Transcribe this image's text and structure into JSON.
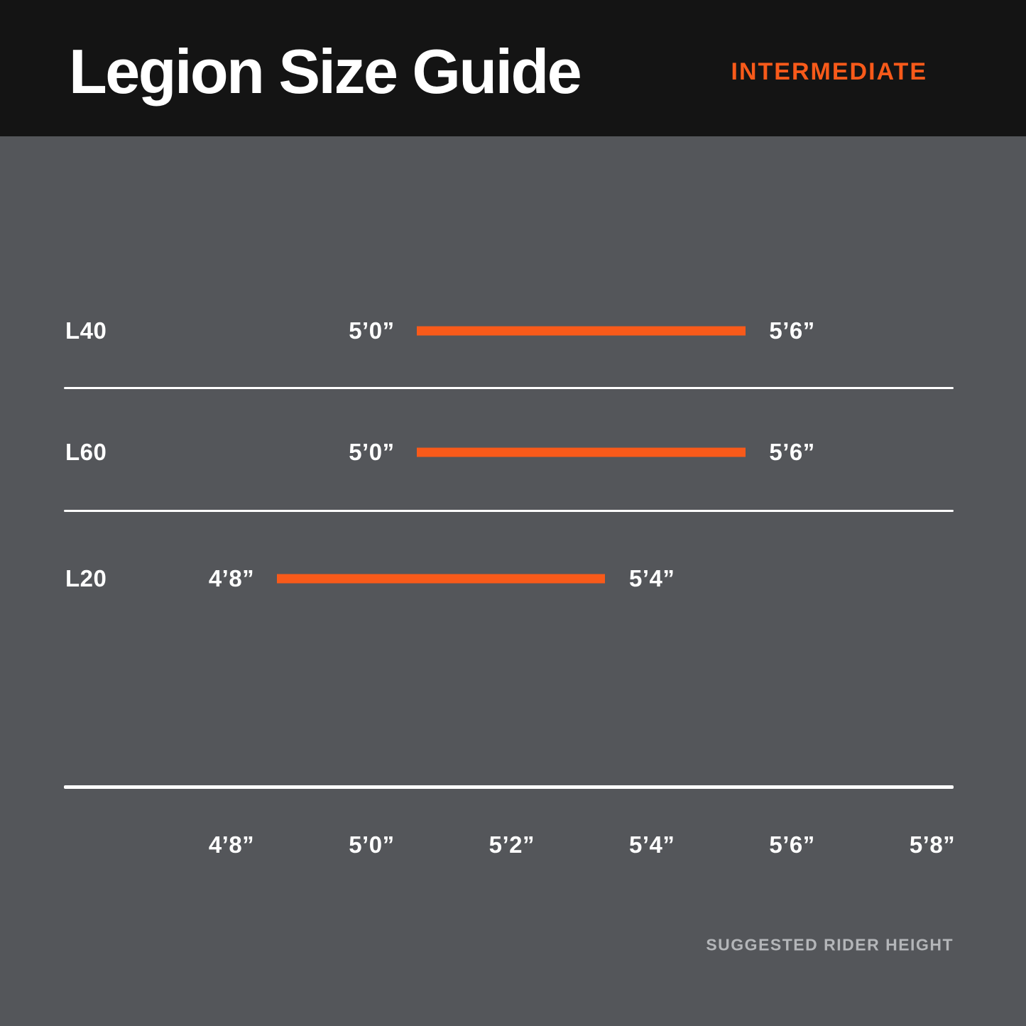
{
  "header": {
    "title": "Legion Size Guide",
    "level_badge": "INTERMEDIATE"
  },
  "chart_data": {
    "type": "bar",
    "subtype": "horizontal-range-bars",
    "title": "Legion Size Guide",
    "subtitle": "INTERMEDIATE",
    "xlabel": "SUGGESTED RIDER HEIGHT",
    "axis_ticks": [
      "4’8”",
      "5’0”",
      "5’2”",
      "5’4”",
      "5’6”",
      "5’8”"
    ],
    "axis_tick_inches": [
      56,
      60,
      62,
      64,
      66,
      68
    ],
    "layout_hints": {
      "tick_spacing": "even (categorical)",
      "grid": "off",
      "bar_color": "#F85A1A"
    },
    "rows": [
      {
        "model": "L40",
        "min_height": "5’0”",
        "max_height": "5’6”",
        "min_in": 60,
        "max_in": 66
      },
      {
        "model": "L60",
        "min_height": "5’0”",
        "max_height": "5’6”",
        "min_in": 60,
        "max_in": 66
      },
      {
        "model": "L20",
        "min_height": "4’8”",
        "max_height": "5’4”",
        "min_in": 56,
        "max_in": 64
      }
    ],
    "footer_label": "SUGGESTED RIDER HEIGHT"
  },
  "colors": {
    "header_bg": "#141414",
    "chart_bg": "#54565A",
    "accent_orange": "#F85A1A",
    "text_white": "#FFFFFF",
    "muted_label": "#B4B6B9",
    "divider": "#FFFFFF"
  }
}
